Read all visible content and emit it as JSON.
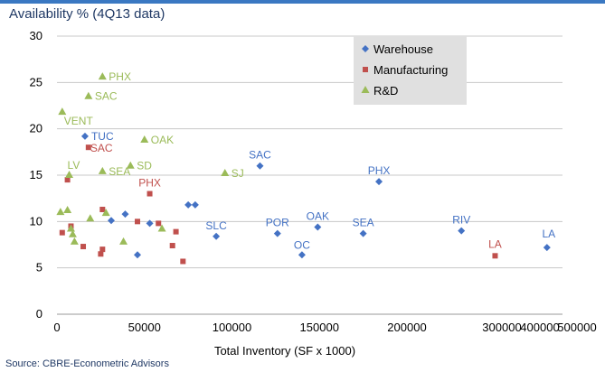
{
  "title": "Availability  %  (4Q13 data)",
  "source": "Source: CBRE-Econometric Advisors",
  "chart_data": {
    "type": "scatter",
    "title": "Availability  %  (4Q13 data)",
    "xlabel": "Total Inventory (SF x 1000)",
    "ylabel": "",
    "ylim": [
      0,
      30
    ],
    "yticks": [
      0,
      5,
      10,
      15,
      20,
      25,
      30
    ],
    "xtick_labels": [
      "0",
      "50000",
      "100000",
      "150000",
      "200000",
      "300000",
      "400000",
      "500000"
    ],
    "grid": "horizontal",
    "legend_position": "top-right",
    "colors": {
      "Warehouse": "#4472c4",
      "Manufacturing": "#c0504d",
      "R&D": "#9bbb59"
    },
    "series": [
      {
        "name": "Warehouse",
        "marker": "diamond",
        "points": [
          {
            "x": 16000,
            "y": 19.2,
            "label": "TUC"
          },
          {
            "x": 31000,
            "y": 10.1
          },
          {
            "x": 39000,
            "y": 10.8
          },
          {
            "x": 46000,
            "y": 6.4
          },
          {
            "x": 53000,
            "y": 9.8
          },
          {
            "x": 75000,
            "y": 11.8
          },
          {
            "x": 79000,
            "y": 11.8
          },
          {
            "x": 91000,
            "y": 8.4,
            "label": "SLC"
          },
          {
            "x": 116000,
            "y": 16.0,
            "label": "SAC"
          },
          {
            "x": 126000,
            "y": 8.7,
            "label": "POR"
          },
          {
            "x": 140000,
            "y": 6.4,
            "label": "OC"
          },
          {
            "x": 149000,
            "y": 9.4,
            "label": "OAK"
          },
          {
            "x": 175000,
            "y": 8.7,
            "label": "SEA"
          },
          {
            "x": 184000,
            "y": 14.3,
            "label": "PHX"
          },
          {
            "x": 305000,
            "y": 9.0,
            "label": "RIV"
          },
          {
            "x": 470000,
            "y": 7.2,
            "label": "LA"
          }
        ]
      },
      {
        "name": "Manufacturing",
        "marker": "square",
        "points": [
          {
            "x": 3000,
            "y": 8.8
          },
          {
            "x": 6000,
            "y": 14.5
          },
          {
            "x": 8000,
            "y": 9.5
          },
          {
            "x": 15000,
            "y": 7.3
          },
          {
            "x": 18000,
            "y": 18.0,
            "label": "SAC"
          },
          {
            "x": 25000,
            "y": 6.5
          },
          {
            "x": 26000,
            "y": 7.0
          },
          {
            "x": 26000,
            "y": 11.3
          },
          {
            "x": 46000,
            "y": 10.0
          },
          {
            "x": 53000,
            "y": 13.0,
            "label": "PHX"
          },
          {
            "x": 58000,
            "y": 9.8
          },
          {
            "x": 66000,
            "y": 7.4
          },
          {
            "x": 68000,
            "y": 8.9
          },
          {
            "x": 72000,
            "y": 5.7
          },
          {
            "x": 370000,
            "y": 6.3,
            "label": "LA"
          }
        ]
      },
      {
        "name": "R&D",
        "marker": "triangle",
        "points": [
          {
            "x": 2000,
            "y": 11.0
          },
          {
            "x": 3000,
            "y": 21.8,
            "label": "VENT"
          },
          {
            "x": 6000,
            "y": 11.2
          },
          {
            "x": 7000,
            "y": 15.0,
            "label": "LV"
          },
          {
            "x": 8000,
            "y": 9.2
          },
          {
            "x": 9000,
            "y": 8.6
          },
          {
            "x": 10000,
            "y": 7.8
          },
          {
            "x": 18000,
            "y": 23.5,
            "label": "SAC"
          },
          {
            "x": 19000,
            "y": 10.3
          },
          {
            "x": 26000,
            "y": 25.6,
            "label": "PHX"
          },
          {
            "x": 26000,
            "y": 15.4,
            "label": "SEA"
          },
          {
            "x": 28000,
            "y": 10.9
          },
          {
            "x": 38000,
            "y": 7.8
          },
          {
            "x": 42000,
            "y": 16.0,
            "label": "SD"
          },
          {
            "x": 50000,
            "y": 18.8,
            "label": "OAK"
          },
          {
            "x": 60000,
            "y": 9.2
          },
          {
            "x": 96000,
            "y": 15.2,
            "label": "SJ"
          }
        ]
      }
    ]
  }
}
